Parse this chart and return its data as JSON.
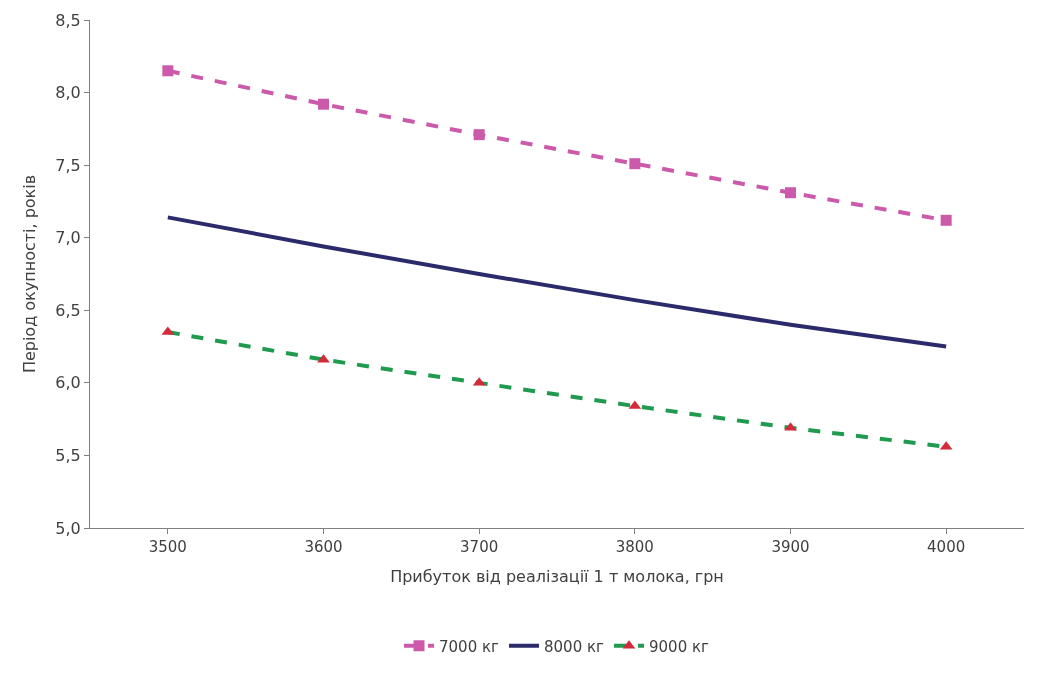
{
  "chart_data": {
    "type": "line",
    "xlabel": "Прибуток від реалізації 1 т молока, грн",
    "ylabel": "Період окупності, років",
    "categories": [
      "3500",
      "3600",
      "3700",
      "3800",
      "3900",
      "4000"
    ],
    "series": [
      {
        "name": "7000 кг",
        "color": "#cc5aaa",
        "values": [
          8.15,
          7.92,
          7.71,
          7.51,
          7.31,
          7.12
        ],
        "marker": "square",
        "line_style": "dashed"
      },
      {
        "name": "8000 кг",
        "color": "#2b2a6b",
        "values": [
          7.14,
          6.94,
          6.75,
          6.57,
          6.4,
          6.25
        ],
        "marker": "none",
        "line_style": "solid"
      },
      {
        "name": "9000 кг",
        "color": "#1f9a4f",
        "colors": [
          "#d42a3a",
          "#d42a3a",
          "#d42a3a",
          "#d42a3a",
          "#d42a3a",
          "#d42a3a"
        ],
        "values": [
          6.35,
          6.16,
          6.0,
          5.84,
          5.69,
          5.56
        ],
        "marker": "triangle",
        "line_style": "dashed"
      }
    ],
    "ylim": [
      5.0,
      8.5
    ],
    "yticks": [
      {
        "value": 5.0,
        "label": "5,0"
      },
      {
        "value": 5.5,
        "label": "5,5"
      },
      {
        "value": 6.0,
        "label": "6,0"
      },
      {
        "value": 6.5,
        "label": "6,5"
      },
      {
        "value": 7.0,
        "label": "7,0"
      },
      {
        "value": 7.5,
        "label": "7,5"
      },
      {
        "value": 8.0,
        "label": "8,0"
      },
      {
        "value": 8.5,
        "label": "8,5"
      }
    ],
    "legend": "bottom"
  }
}
